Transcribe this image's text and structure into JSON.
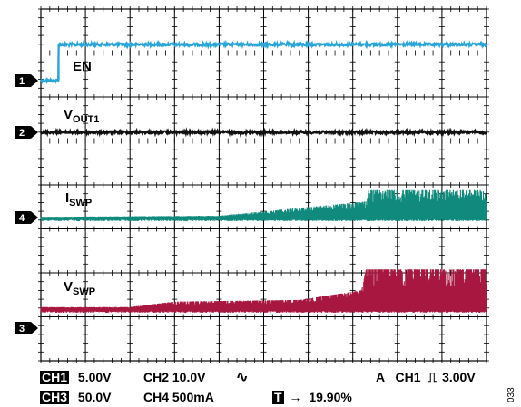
{
  "chart_data": {
    "type": "line",
    "subtype": "oscilloscope-capture",
    "grid": {
      "divisions_x": 10,
      "divisions_y": 8,
      "minor_ticks": true
    },
    "series": [
      {
        "channel": "1",
        "label_main": "EN",
        "label_sub": "",
        "color": "#2aa5d8",
        "marker": "1",
        "segments": [
          {
            "from": 0.0,
            "to": 0.4,
            "level": 0
          },
          {
            "from": 0.4,
            "to": 10.0,
            "level": 0.85
          }
        ],
        "noise": 0.05
      },
      {
        "channel": "2",
        "label_main": "V",
        "label_sub": "OUT1",
        "color": "#111111",
        "marker": "2",
        "segments": [
          {
            "from": 0.0,
            "to": 10.0,
            "level": 0
          }
        ],
        "noise": 0.05
      },
      {
        "channel": "4",
        "label_main": "I",
        "label_sub": "SWP",
        "color": "#0f8a7c",
        "marker": "4",
        "envelope": [
          [
            0.0,
            0.02,
            0.02
          ],
          [
            4.0,
            0.05,
            0.05
          ],
          [
            5.5,
            0.22,
            0.12
          ],
          [
            7.3,
            0.42,
            0.2
          ],
          [
            7.35,
            0.72,
            0.2
          ],
          [
            10.0,
            0.72,
            0.2
          ]
        ]
      },
      {
        "channel": "3",
        "label_main": "V",
        "label_sub": "SWP",
        "color": "#a8173f",
        "marker": "3",
        "envelope": [
          [
            0.0,
            0.05,
            0.05
          ],
          [
            2.0,
            0.05,
            0.3
          ],
          [
            3.0,
            0.18,
            0.4
          ],
          [
            5.8,
            0.22,
            0.4
          ],
          [
            7.2,
            0.45,
            0.4
          ],
          [
            7.3,
            0.95,
            0.4
          ],
          [
            10.0,
            0.95,
            0.4
          ]
        ]
      }
    ]
  },
  "footer": {
    "ch1_tag": "CH1",
    "ch1_scale": "5.00V",
    "ch2_scale": "CH2 10.0V",
    "coupling_symbol": "∿",
    "trigger_prefix": "A",
    "trigger_source": "CH1",
    "trigger_slope": "⎍",
    "trigger_level": "3.00V",
    "ch3_tag": "CH3",
    "ch3_scale": "50.0V",
    "ch4_scale": "CH4 500mA",
    "trigger_pos_tag": "T",
    "trigger_pos_arrow": "→",
    "trigger_pos_value": "19.90%",
    "figure_id": "033"
  }
}
